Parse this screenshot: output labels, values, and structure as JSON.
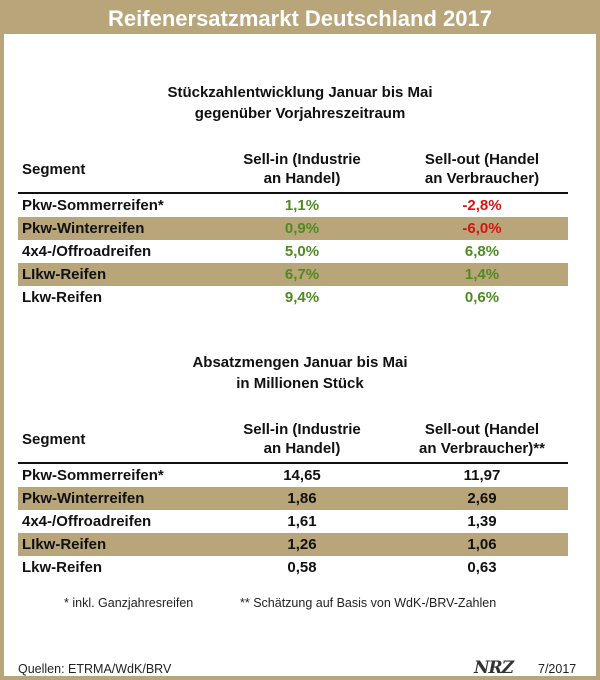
{
  "title": "Reifenersatzmarkt Deutschland 2017",
  "colors": {
    "accent": "#b8a57a",
    "positive": "#4f8a22",
    "negative": "#d41414"
  },
  "section1": {
    "title_line1": "Stückzahlentwicklung Januar bis Mai",
    "title_line2": "gegenüber Vorjahreszeitraum",
    "header": {
      "segment": "Segment",
      "col1_line1": "Sell-in (Industrie",
      "col1_line2": "an Handel)",
      "col2_line1": "Sell-out (Handel",
      "col2_line2": "an Verbraucher)"
    },
    "rows": [
      {
        "segment": "Pkw-Sommerreifen*",
        "sell_in": "1,1%",
        "sell_out": "-2,8%"
      },
      {
        "segment": "Pkw-Winterreifen",
        "sell_in": "0,9%",
        "sell_out": "-6,0%"
      },
      {
        "segment": "4x4-/Offroadreifen",
        "sell_in": "5,0%",
        "sell_out": "6,8%"
      },
      {
        "segment": "LIkw-Reifen",
        "sell_in": "6,7%",
        "sell_out": "1,4%"
      },
      {
        "segment": "Lkw-Reifen",
        "sell_in": "9,4%",
        "sell_out": "0,6%"
      }
    ]
  },
  "section2": {
    "title_line1": "Absatzmengen Januar bis Mai",
    "title_line2": "in Millionen Stück",
    "header": {
      "segment": "Segment",
      "col1_line1": "Sell-in (Industrie",
      "col1_line2": "an Handel)",
      "col2_line1": "Sell-out (Handel",
      "col2_line2": "an Verbraucher)**"
    },
    "rows": [
      {
        "segment": "Pkw-Sommerreifen*",
        "sell_in": "14,65",
        "sell_out": "11,97"
      },
      {
        "segment": "Pkw-Winterreifen",
        "sell_in": "1,86",
        "sell_out": "2,69"
      },
      {
        "segment": "4x4-/Offroadreifen",
        "sell_in": "1,61",
        "sell_out": "1,39"
      },
      {
        "segment": "LIkw-Reifen",
        "sell_in": "1,26",
        "sell_out": "1,06"
      },
      {
        "segment": "Lkw-Reifen",
        "sell_in": "0,58",
        "sell_out": "0,63"
      }
    ]
  },
  "footnotes": {
    "note1": "* inkl. Ganzjahresreifen",
    "note2": "** Schätzung auf Basis von WdK-/BRV-Zahlen"
  },
  "footer": {
    "source": "Quellen: ETRMA/WdK/BRV",
    "logo": "NRZ",
    "date": "7/2017"
  }
}
